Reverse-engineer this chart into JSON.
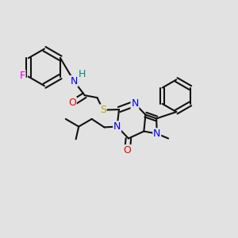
{
  "bg": "#e2e2e2",
  "bc": "#111111",
  "lw": 1.5,
  "figsize": [
    3.0,
    3.0
  ],
  "dpi": 100,
  "colors": {
    "F": "#dd00dd",
    "N": "#0000ee",
    "H": "#008888",
    "O": "#ee0000",
    "S": "#aaaa00",
    "C": "#111111"
  },
  "fs": 8.5
}
